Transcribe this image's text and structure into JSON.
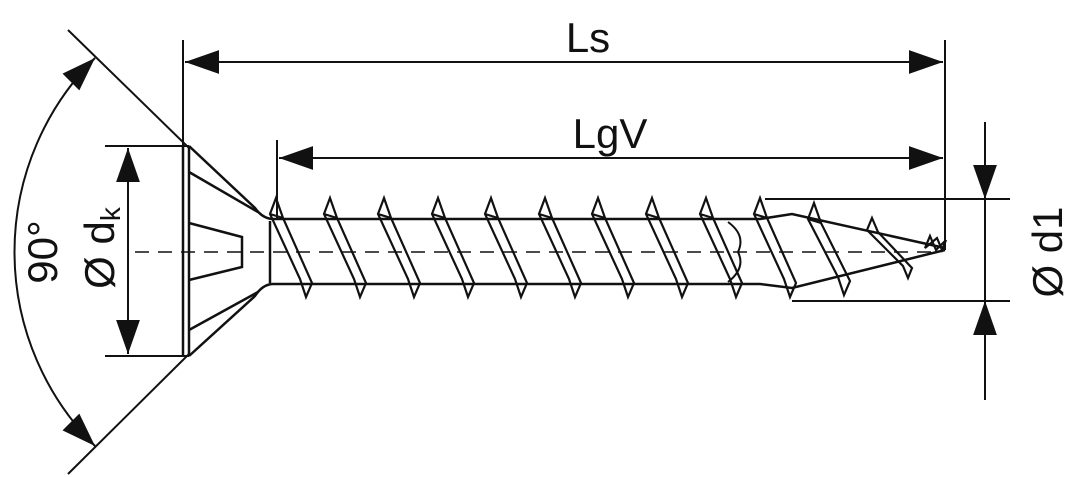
{
  "labels": {
    "total_length": "Ls",
    "thread_length": "LgV",
    "angle": "90°",
    "head_diameter_symbol": "Ø d",
    "head_diameter_subscript": "k",
    "thread_diameter": "Ø d1"
  },
  "colors": {
    "line": "#111111",
    "background": "#ffffff"
  }
}
